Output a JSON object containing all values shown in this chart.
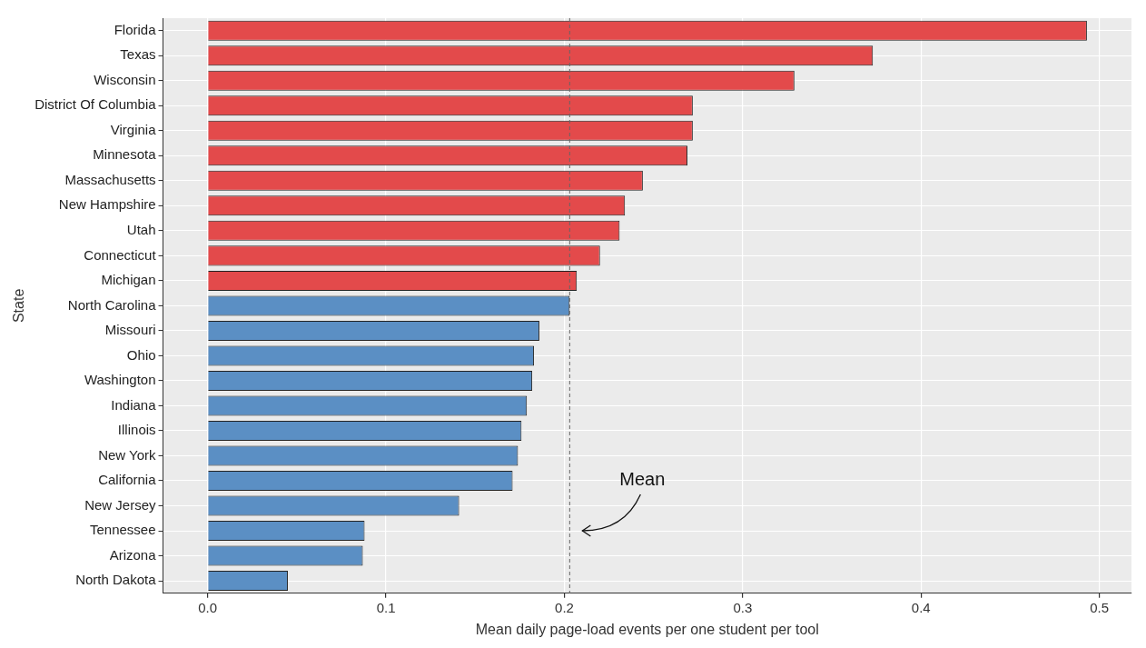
{
  "chart_data": {
    "type": "bar",
    "orientation": "horizontal",
    "xlabel": "Mean daily page-load events per one student per tool",
    "ylabel": "State",
    "categories": [
      "Florida",
      "Texas",
      "Wisconsin",
      "District Of Columbia",
      "Virginia",
      "Minnesota",
      "Massachusetts",
      "New Hampshire",
      "Utah",
      "Connecticut",
      "Michigan",
      "North Carolina",
      "Missouri",
      "Ohio",
      "Washington",
      "Indiana",
      "Illinois",
      "New York",
      "California",
      "New Jersey",
      "Tennessee",
      "Arizona",
      "North Dakota"
    ],
    "values": [
      0.493,
      0.373,
      0.329,
      0.272,
      0.272,
      0.269,
      0.244,
      0.234,
      0.231,
      0.22,
      0.207,
      0.203,
      0.186,
      0.183,
      0.182,
      0.179,
      0.176,
      0.174,
      0.171,
      0.141,
      0.088,
      0.087,
      0.045
    ],
    "colors": [
      "#e34a4b",
      "#e34a4b",
      "#e34a4b",
      "#e34a4b",
      "#e34a4b",
      "#e34a4b",
      "#e34a4b",
      "#e34a4b",
      "#e34a4b",
      "#e34a4b",
      "#e34a4b",
      "#5b8fc4",
      "#5b8fc4",
      "#5b8fc4",
      "#5b8fc4",
      "#5b8fc4",
      "#5b8fc4",
      "#5b8fc4",
      "#5b8fc4",
      "#5b8fc4",
      "#5b8fc4",
      "#5b8fc4",
      "#5b8fc4"
    ],
    "xlim": [
      -0.025,
      0.518
    ],
    "xticks": [
      {
        "value": 0,
        "label": "0.0"
      },
      {
        "value": 0.1,
        "label": "0.1"
      },
      {
        "value": 0.2,
        "label": "0.2"
      },
      {
        "value": 0.3,
        "label": "0.3"
      },
      {
        "value": 0.4,
        "label": "0.4"
      },
      {
        "value": 0.5,
        "label": "0.5"
      }
    ],
    "grid": true,
    "ref_lines": [
      {
        "axis": "x",
        "value": 0.203,
        "label": "Mean",
        "color": "#666666",
        "line_style": "dashed"
      }
    ]
  }
}
